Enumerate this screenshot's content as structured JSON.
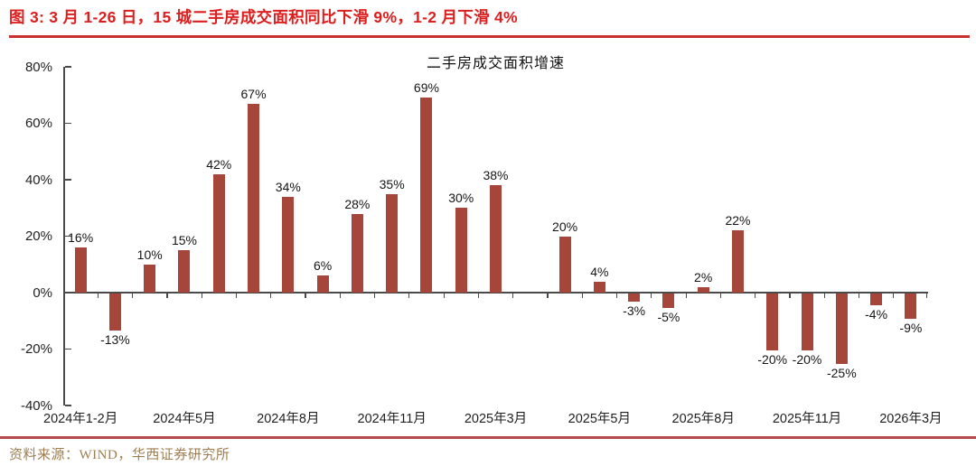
{
  "figure": {
    "title": "图 3: 3 月 1-26 日，15 城二手房成交面积同比下滑 9%，1-2 月下滑 4%",
    "source": "资料来源：WIND，华西证券研究所"
  },
  "colors": {
    "bar": "#A6463A",
    "figure_title": "#DC1E1E",
    "rule_top": "#C9302F",
    "rule_bottom": "#B64A4B",
    "source_text": "#9E7E50",
    "axis": "#4a4a4a"
  },
  "chart_data": {
    "type": "bar",
    "title": "二手房成交面积增速",
    "values": [
      16,
      -13,
      10,
      15,
      42,
      67,
      34,
      6,
      28,
      35,
      69,
      30,
      38,
      null,
      20,
      4,
      -3,
      -5,
      2,
      22,
      -20,
      -20,
      -25,
      -4,
      -9
    ],
    "data_labels": [
      "16%",
      "-13%",
      "10%",
      "15%",
      "42%",
      "67%",
      "34%",
      "6%",
      "28%",
      "35%",
      "69%",
      "30%",
      "38%",
      null,
      "20%",
      "4%",
      "-3%",
      "-5%",
      "2%",
      "22%",
      "-20%",
      "-20%",
      "-25%",
      "-4%",
      "-9%"
    ],
    "x_ticks": [
      {
        "slot": 0,
        "label": "2024年1-2月"
      },
      {
        "slot": 3,
        "label": "2024年5月"
      },
      {
        "slot": 6,
        "label": "2024年8月"
      },
      {
        "slot": 9,
        "label": "2024年11月"
      },
      {
        "slot": 12,
        "label": "2025年3月"
      },
      {
        "slot": 15,
        "label": "2025年5月"
      },
      {
        "slot": 18,
        "label": "2025年8月"
      },
      {
        "slot": 21,
        "label": "2025年11月"
      },
      {
        "slot": 24,
        "label": "2026年3月"
      }
    ],
    "y_ticks": [
      "80%",
      "60%",
      "40%",
      "20%",
      "0%",
      "-20%",
      "-40%"
    ],
    "ylim": [
      -40,
      80
    ],
    "xlabel": "",
    "ylabel": "",
    "grid": false,
    "legend": false
  }
}
